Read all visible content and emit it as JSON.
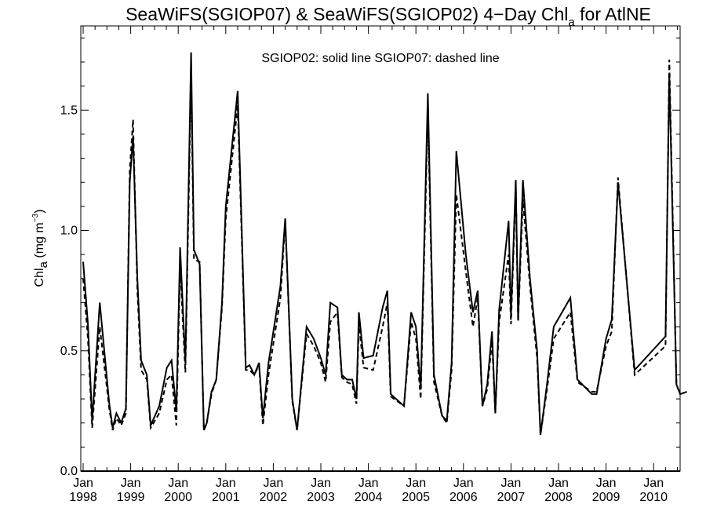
{
  "chart_data": {
    "type": "line",
    "title": "SeaWiFS(SGIOP07) & SeaWiFS(SGIOP02) 4−Day Chl",
    "title_subscript": "a",
    "title_suffix": " for AtlNE",
    "ylabel": "Chl",
    "ylabel_subscript": "a",
    "ylabel_unit_prefix": " (mg m",
    "ylabel_unit_exp": "−3",
    "ylabel_unit_suffix": ")",
    "annotation": "SGIOP02: solid line   SGIOP07: dashed line",
    "ylim": [
      0.0,
      1.85
    ],
    "xlim": [
      1998.0,
      2010.75
    ],
    "yticks": [
      {
        "value": 0.0,
        "label": "0.0"
      },
      {
        "value": 0.5,
        "label": "0.5"
      },
      {
        "value": 1.0,
        "label": "1.0"
      },
      {
        "value": 1.5,
        "label": "1.5"
      }
    ],
    "xticks": [
      {
        "value": 1998,
        "month": "Jan",
        "year": "1998"
      },
      {
        "value": 1999,
        "month": "Jan",
        "year": "1999"
      },
      {
        "value": 2000,
        "month": "Jan",
        "year": "2000"
      },
      {
        "value": 2001,
        "month": "Jan",
        "year": "2001"
      },
      {
        "value": 2002,
        "month": "Jan",
        "year": "2002"
      },
      {
        "value": 2003,
        "month": "Jan",
        "year": "2003"
      },
      {
        "value": 2004,
        "month": "Jan",
        "year": "2004"
      },
      {
        "value": 2005,
        "month": "Jan",
        "year": "2005"
      },
      {
        "value": 2006,
        "month": "Jan",
        "year": "2006"
      },
      {
        "value": 2007,
        "month": "Jan",
        "year": "2007"
      },
      {
        "value": 2008,
        "month": "Jan",
        "year": "2008"
      },
      {
        "value": 2009,
        "month": "Jan",
        "year": "2009"
      },
      {
        "value": 2010,
        "month": "Jan",
        "year": "2010"
      }
    ],
    "series": [
      {
        "name": "SGIOP02",
        "style": "solid",
        "color": "#000000",
        "points": [
          [
            1998.0,
            0.87
          ],
          [
            1998.1,
            0.61
          ],
          [
            1998.19,
            0.21
          ],
          [
            1998.35,
            0.7
          ],
          [
            1998.55,
            0.28
          ],
          [
            1998.62,
            0.18
          ],
          [
            1998.7,
            0.24
          ],
          [
            1998.8,
            0.2
          ],
          [
            1998.9,
            0.26
          ],
          [
            1998.98,
            1.2
          ],
          [
            1999.05,
            1.39
          ],
          [
            1999.14,
            0.8
          ],
          [
            1999.22,
            0.46
          ],
          [
            1999.34,
            0.4
          ],
          [
            1999.42,
            0.19
          ],
          [
            1999.6,
            0.27
          ],
          [
            1999.76,
            0.43
          ],
          [
            1999.86,
            0.46
          ],
          [
            1999.96,
            0.25
          ],
          [
            2000.04,
            0.93
          ],
          [
            2000.15,
            0.45
          ],
          [
            2000.27,
            1.74
          ],
          [
            2000.33,
            0.92
          ],
          [
            2000.45,
            0.86
          ],
          [
            2000.54,
            0.17
          ],
          [
            2000.6,
            0.2
          ],
          [
            2000.7,
            0.33
          ],
          [
            2000.8,
            0.38
          ],
          [
            2000.92,
            0.7
          ],
          [
            2001.0,
            1.1
          ],
          [
            2001.25,
            1.58
          ],
          [
            2001.42,
            0.43
          ],
          [
            2001.5,
            0.44
          ],
          [
            2001.6,
            0.4
          ],
          [
            2001.7,
            0.45
          ],
          [
            2001.78,
            0.22
          ],
          [
            2001.9,
            0.45
          ],
          [
            2002.15,
            0.77
          ],
          [
            2002.25,
            1.05
          ],
          [
            2002.4,
            0.3
          ],
          [
            2002.5,
            0.17
          ],
          [
            2002.7,
            0.6
          ],
          [
            2002.85,
            0.55
          ],
          [
            2003.0,
            0.47
          ],
          [
            2003.1,
            0.4
          ],
          [
            2003.2,
            0.7
          ],
          [
            2003.35,
            0.68
          ],
          [
            2003.44,
            0.4
          ],
          [
            2003.55,
            0.38
          ],
          [
            2003.66,
            0.38
          ],
          [
            2003.75,
            0.3
          ],
          [
            2003.8,
            0.66
          ],
          [
            2003.9,
            0.47
          ],
          [
            2004.1,
            0.48
          ],
          [
            2004.3,
            0.68
          ],
          [
            2004.4,
            0.75
          ],
          [
            2004.47,
            0.32
          ],
          [
            2004.75,
            0.27
          ],
          [
            2004.9,
            0.66
          ],
          [
            2005.0,
            0.6
          ],
          [
            2005.1,
            0.34
          ],
          [
            2005.25,
            1.57
          ],
          [
            2005.38,
            0.4
          ],
          [
            2005.55,
            0.23
          ],
          [
            2005.65,
            0.21
          ],
          [
            2005.75,
            0.45
          ],
          [
            2005.85,
            1.33
          ],
          [
            2006.05,
            0.9
          ],
          [
            2006.2,
            0.66
          ],
          [
            2006.3,
            0.75
          ],
          [
            2006.4,
            0.27
          ],
          [
            2006.5,
            0.36
          ],
          [
            2006.6,
            0.58
          ],
          [
            2006.67,
            0.24
          ],
          [
            2006.75,
            0.67
          ],
          [
            2006.95,
            1.04
          ],
          [
            2007.0,
            0.65
          ],
          [
            2007.1,
            1.21
          ],
          [
            2007.15,
            0.63
          ],
          [
            2007.25,
            1.21
          ],
          [
            2007.4,
            0.8
          ],
          [
            2007.55,
            0.5
          ],
          [
            2007.62,
            0.15
          ],
          [
            2007.75,
            0.35
          ],
          [
            2007.9,
            0.6
          ],
          [
            2008.25,
            0.72
          ],
          [
            2008.4,
            0.38
          ],
          [
            2008.7,
            0.32
          ],
          [
            2008.8,
            0.32
          ],
          [
            2009.0,
            0.55
          ],
          [
            2009.12,
            0.63
          ],
          [
            2009.25,
            1.2
          ],
          [
            2009.6,
            0.42
          ],
          [
            2010.25,
            0.56
          ],
          [
            2010.33,
            1.65
          ],
          [
            2010.48,
            0.36
          ],
          [
            2010.56,
            0.32
          ],
          [
            2010.7,
            0.33
          ]
        ]
      },
      {
        "name": "SGIOP07",
        "style": "dashed",
        "color": "#000000",
        "points": [
          [
            1998.0,
            0.8
          ],
          [
            1998.1,
            0.55
          ],
          [
            1998.19,
            0.18
          ],
          [
            1998.35,
            0.6
          ],
          [
            1998.55,
            0.26
          ],
          [
            1998.62,
            0.17
          ],
          [
            1998.7,
            0.22
          ],
          [
            1998.8,
            0.19
          ],
          [
            1998.9,
            0.24
          ],
          [
            1998.98,
            1.25
          ],
          [
            1999.05,
            1.46
          ],
          [
            1999.14,
            0.75
          ],
          [
            1999.22,
            0.42
          ],
          [
            1999.34,
            0.38
          ],
          [
            1999.42,
            0.18
          ],
          [
            1999.6,
            0.24
          ],
          [
            1999.76,
            0.38
          ],
          [
            1999.86,
            0.4
          ],
          [
            1999.96,
            0.19
          ],
          [
            2000.04,
            0.85
          ],
          [
            2000.15,
            0.41
          ],
          [
            2000.27,
            1.65
          ],
          [
            2000.33,
            0.88
          ],
          [
            2000.45,
            0.87
          ],
          [
            2000.54,
            0.17
          ],
          [
            2000.6,
            0.2
          ],
          [
            2000.7,
            0.32
          ],
          [
            2000.8,
            0.38
          ],
          [
            2000.92,
            0.68
          ],
          [
            2001.0,
            1.05
          ],
          [
            2001.25,
            1.52
          ],
          [
            2001.42,
            0.42
          ],
          [
            2001.5,
            0.42
          ],
          [
            2001.6,
            0.4
          ],
          [
            2001.7,
            0.44
          ],
          [
            2001.78,
            0.19
          ],
          [
            2001.9,
            0.4
          ],
          [
            2002.15,
            0.72
          ],
          [
            2002.25,
            1.04
          ],
          [
            2002.4,
            0.29
          ],
          [
            2002.5,
            0.17
          ],
          [
            2002.7,
            0.57
          ],
          [
            2002.85,
            0.52
          ],
          [
            2003.0,
            0.45
          ],
          [
            2003.1,
            0.37
          ],
          [
            2003.2,
            0.62
          ],
          [
            2003.35,
            0.66
          ],
          [
            2003.44,
            0.39
          ],
          [
            2003.55,
            0.37
          ],
          [
            2003.66,
            0.36
          ],
          [
            2003.75,
            0.28
          ],
          [
            2003.8,
            0.61
          ],
          [
            2003.9,
            0.43
          ],
          [
            2004.1,
            0.42
          ],
          [
            2004.3,
            0.6
          ],
          [
            2004.4,
            0.7
          ],
          [
            2004.47,
            0.31
          ],
          [
            2004.75,
            0.27
          ],
          [
            2004.9,
            0.62
          ],
          [
            2005.0,
            0.55
          ],
          [
            2005.1,
            0.3
          ],
          [
            2005.25,
            1.5
          ],
          [
            2005.38,
            0.37
          ],
          [
            2005.55,
            0.23
          ],
          [
            2005.65,
            0.2
          ],
          [
            2005.75,
            0.42
          ],
          [
            2005.85,
            1.15
          ],
          [
            2006.05,
            0.83
          ],
          [
            2006.2,
            0.6
          ],
          [
            2006.3,
            0.72
          ],
          [
            2006.4,
            0.27
          ],
          [
            2006.5,
            0.34
          ],
          [
            2006.6,
            0.54
          ],
          [
            2006.67,
            0.24
          ],
          [
            2006.75,
            0.62
          ],
          [
            2006.95,
            0.9
          ],
          [
            2007.0,
            0.61
          ],
          [
            2007.1,
            1.18
          ],
          [
            2007.15,
            0.62
          ],
          [
            2007.25,
            1.13
          ],
          [
            2007.4,
            0.77
          ],
          [
            2007.55,
            0.47
          ],
          [
            2007.62,
            0.15
          ],
          [
            2007.75,
            0.33
          ],
          [
            2007.9,
            0.55
          ],
          [
            2008.25,
            0.66
          ],
          [
            2008.4,
            0.37
          ],
          [
            2008.7,
            0.33
          ],
          [
            2008.8,
            0.33
          ],
          [
            2009.0,
            0.52
          ],
          [
            2009.12,
            0.58
          ],
          [
            2009.25,
            1.22
          ],
          [
            2009.6,
            0.4
          ],
          [
            2010.25,
            0.52
          ],
          [
            2010.33,
            1.71
          ],
          [
            2010.48,
            0.36
          ],
          [
            2010.56,
            0.32
          ],
          [
            2010.7,
            0.33
          ]
        ]
      }
    ]
  }
}
